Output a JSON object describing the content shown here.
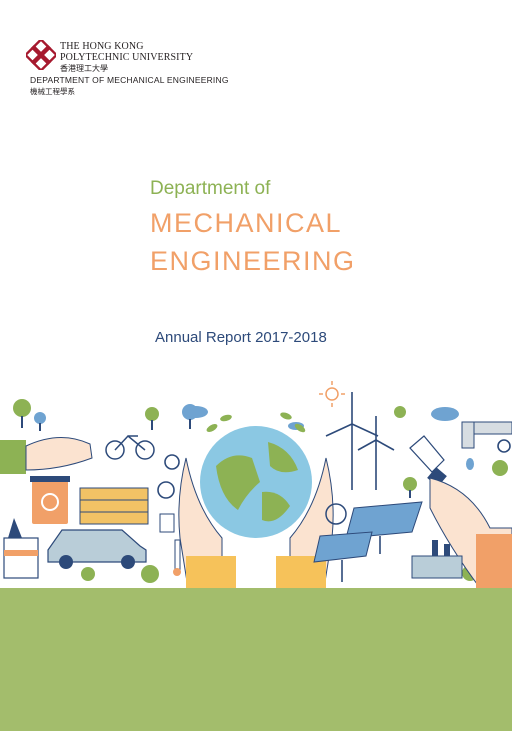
{
  "header": {
    "university_en_line1": "THE HONG KONG",
    "university_en_line2": "POLYTECHNIC UNIVERSITY",
    "university_cn": "香港理工大學",
    "department_en": "DEPARTMENT OF MECHANICAL ENGINEERING",
    "department_cn": "機械工程學系"
  },
  "cover": {
    "title_line1": "Department of",
    "title_line2": "MECHANICAL",
    "title_line3": "ENGINEERING",
    "subtitle": "Annual Report 2017-2018"
  },
  "colors": {
    "green": "#8db254",
    "orange": "#f1a068",
    "navy": "#2d4a7a",
    "logo_red": "#a6192e",
    "band": "#a3bd6c"
  }
}
